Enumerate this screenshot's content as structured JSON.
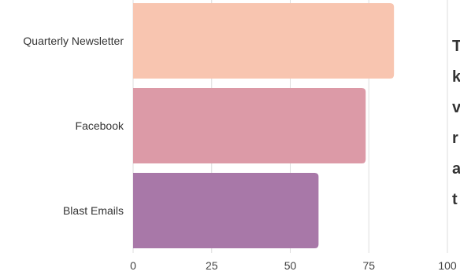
{
  "chart_data": {
    "type": "bar",
    "orientation": "horizontal",
    "categories": [
      "Quarterly Newsletter",
      "Facebook",
      "Blast Emails"
    ],
    "values": [
      83,
      74,
      59
    ],
    "colors": [
      "#f8c5b0",
      "#dc9aa7",
      "#a878a8"
    ],
    "xlim": [
      0,
      100
    ],
    "xticks": [
      0,
      25,
      50,
      75,
      100
    ],
    "grid": true,
    "title": "",
    "xlabel": "",
    "ylabel": ""
  },
  "side_text": {
    "lines": [
      "T",
      "k",
      "v",
      "r",
      "a",
      "t"
    ]
  }
}
